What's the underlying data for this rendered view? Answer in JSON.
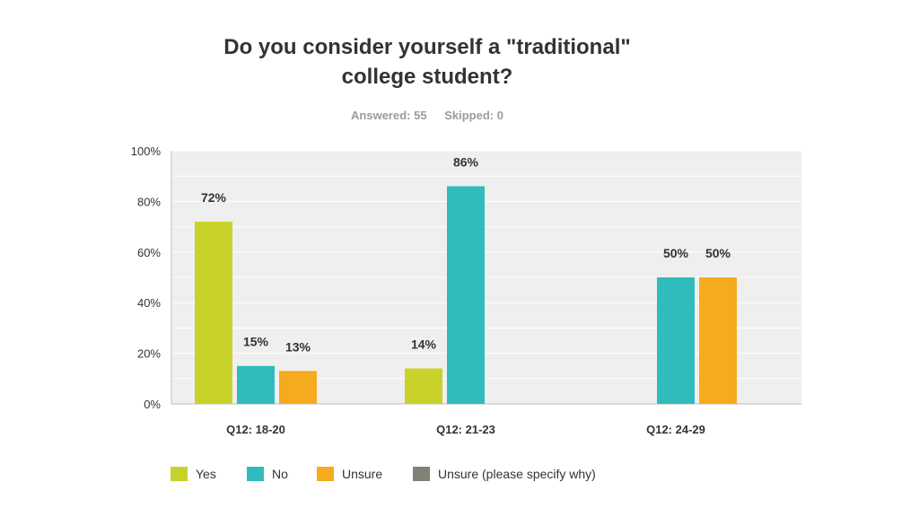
{
  "chart_data": {
    "type": "bar",
    "title": "Do you consider yourself a \"traditional\" college student?",
    "title_lines": [
      "Do you consider yourself a \"traditional\"",
      "college student?"
    ],
    "answered": "Answered: 55",
    "skipped": "Skipped: 0",
    "categories": [
      "Q12: 18-20",
      "Q12: 21-23",
      "Q12: 24-29"
    ],
    "ylim": [
      0,
      100
    ],
    "yticks": [
      0,
      20,
      40,
      60,
      80,
      100
    ],
    "ytick_labels": [
      "0%",
      "20%",
      "40%",
      "60%",
      "80%",
      "100%"
    ],
    "grid": true,
    "legend_position": "bottom",
    "series": [
      {
        "name": "Yes",
        "color": "#c9d22a",
        "values": [
          72,
          14,
          0
        ],
        "labels": [
          "72%",
          "14%",
          ""
        ]
      },
      {
        "name": "No",
        "color": "#30bcbc",
        "values": [
          15,
          86,
          50
        ],
        "labels": [
          "15%",
          "86%",
          "50%"
        ]
      },
      {
        "name": "Unsure",
        "color": "#f5ab1d",
        "values": [
          13,
          0,
          50
        ],
        "labels": [
          "13%",
          "",
          "50%"
        ]
      },
      {
        "name": "Unsure (please specify why)",
        "color": "#7f8274",
        "values": [
          0,
          0,
          0
        ],
        "labels": [
          "",
          "",
          ""
        ]
      }
    ]
  }
}
